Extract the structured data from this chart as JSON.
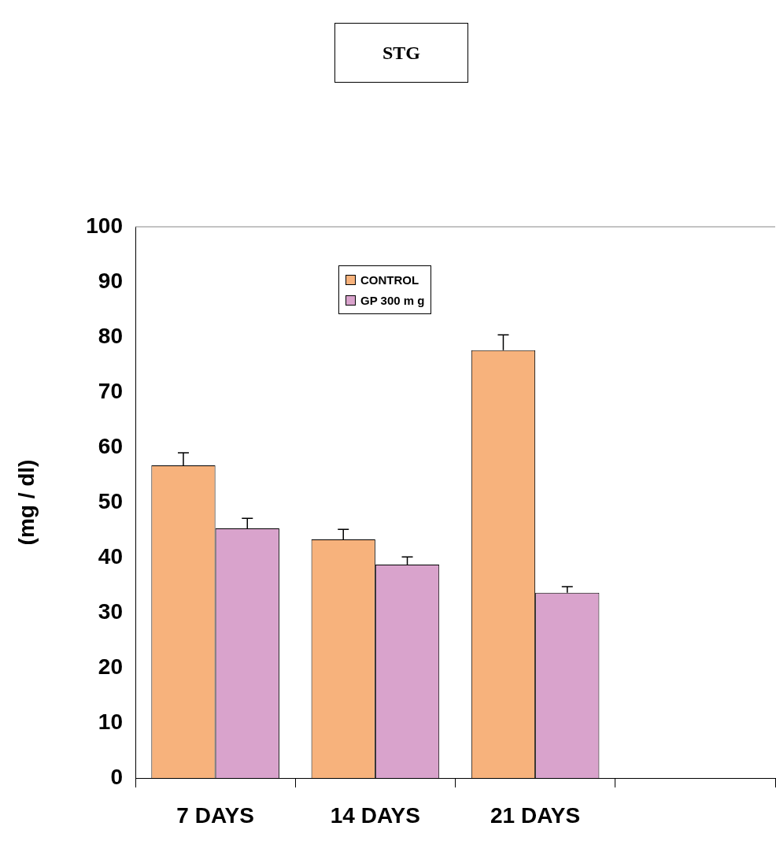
{
  "chart_data": {
    "type": "bar",
    "title": "STG",
    "ylabel": "(mg / dl)",
    "categories": [
      "7 DAYS",
      "14 DAYS",
      "21 DAYS",
      null
    ],
    "series": [
      {
        "name": "CONTROL",
        "color": "#f7b27c",
        "values": [
          56.7,
          43.3,
          77.6,
          null
        ],
        "errors": [
          2.3,
          1.8,
          2.8,
          null
        ]
      },
      {
        "name": "GP 300 m g",
        "color": "#d9a3cc",
        "values": [
          45.3,
          38.7,
          33.6,
          null
        ],
        "errors": [
          1.8,
          1.4,
          1.1,
          null
        ]
      }
    ],
    "ylim": [
      0,
      100
    ],
    "yticks": [
      0,
      10,
      20,
      30,
      40,
      50,
      60,
      70,
      80,
      90,
      100
    ],
    "grid": false,
    "legend": "top"
  }
}
